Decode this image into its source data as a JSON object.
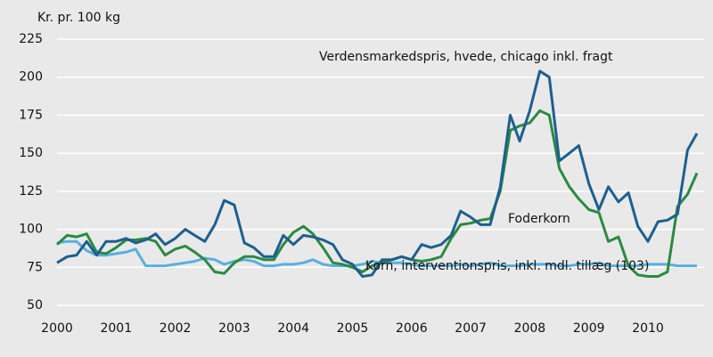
{
  "chart_data": {
    "type": "line",
    "ylabel": "Kr. pr. 100 kg",
    "x": [
      2000,
      2000.17,
      2000.33,
      2000.5,
      2000.67,
      2000.83,
      2001,
      2001.17,
      2001.33,
      2001.5,
      2001.67,
      2001.83,
      2002,
      2002.17,
      2002.33,
      2002.5,
      2002.67,
      2002.83,
      2003,
      2003.17,
      2003.33,
      2003.5,
      2003.67,
      2003.83,
      2004,
      2004.17,
      2004.33,
      2004.5,
      2004.67,
      2004.83,
      2005,
      2005.17,
      2005.33,
      2005.5,
      2005.67,
      2005.83,
      2006,
      2006.17,
      2006.33,
      2006.5,
      2006.67,
      2006.83,
      2007,
      2007.17,
      2007.33,
      2007.5,
      2007.67,
      2007.83,
      2008,
      2008.17,
      2008.33,
      2008.5,
      2008.67,
      2008.83,
      2009,
      2009.17,
      2009.33,
      2009.5,
      2009.67,
      2009.83,
      2010,
      2010.17,
      2010.33,
      2010.5,
      2010.67,
      2010.83
    ],
    "series": [
      {
        "name": "Verdensmarkedspris, hvede, chicago inkl. fragt",
        "color": "#1d5f8f",
        "values": [
          78,
          82,
          83,
          92,
          83,
          92,
          92,
          94,
          91,
          93,
          97,
          90,
          94,
          100,
          96,
          92,
          103,
          119,
          116,
          91,
          88,
          82,
          82,
          96,
          90,
          96,
          95,
          93,
          90,
          80,
          77,
          69,
          70,
          80,
          80,
          82,
          80,
          90,
          88,
          90,
          96,
          112,
          108,
          103,
          103,
          128,
          175,
          158,
          178,
          204,
          200,
          145,
          150,
          155,
          130,
          113,
          128,
          118,
          124,
          102,
          92,
          105,
          106,
          110,
          152,
          163
        ]
      },
      {
        "name": "Foderkorn",
        "color": "#2a8a40",
        "values": [
          90,
          96,
          95,
          97,
          85,
          84,
          88,
          93,
          93,
          94,
          92,
          83,
          87,
          89,
          85,
          80,
          72,
          71,
          78,
          82,
          82,
          80,
          80,
          90,
          98,
          102,
          97,
          88,
          78,
          77,
          75,
          72,
          76,
          78,
          80,
          82,
          80,
          79,
          80,
          82,
          94,
          103,
          104,
          106,
          107,
          125,
          165,
          168,
          170,
          178,
          175,
          140,
          128,
          120,
          113,
          111,
          92,
          95,
          76,
          70,
          69,
          69,
          72,
          115,
          123,
          137
        ]
      },
      {
        "name": "Korn, interventionspris, inkl. mdl. tillæg (103)",
        "color": "#5aaee0",
        "values": [
          91,
          92,
          92,
          86,
          83,
          83,
          84,
          85,
          87,
          76,
          76,
          76,
          77,
          78,
          79,
          81,
          80,
          77,
          79,
          80,
          79,
          76,
          76,
          77,
          77,
          78,
          80,
          77,
          76,
          76,
          76,
          77,
          79,
          78,
          78,
          78,
          77,
          76,
          76,
          76,
          76,
          77,
          76,
          77,
          78,
          76,
          76,
          76,
          77,
          77,
          77,
          76,
          76,
          77,
          77,
          78,
          76,
          76,
          76,
          76,
          77,
          77,
          77,
          76,
          76,
          76
        ]
      }
    ],
    "xlim": [
      2000,
      2010.95
    ],
    "xticks": [
      2000,
      2001,
      2002,
      2003,
      2004,
      2005,
      2006,
      2007,
      2008,
      2009,
      2010
    ],
    "ylim": [
      50,
      225
    ],
    "yticks": [
      50,
      75,
      100,
      125,
      150,
      175,
      200,
      225
    ],
    "grid": true
  }
}
